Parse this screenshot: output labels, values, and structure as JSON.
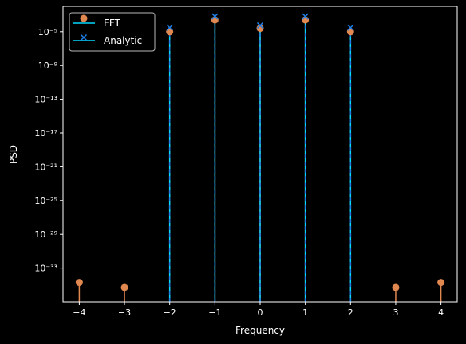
{
  "chart_data": {
    "type": "scatter",
    "xlabel": "Frequency",
    "ylabel": "PSD",
    "y_scale": "log",
    "xlim": [
      -4.36,
      4.36
    ],
    "ylim": [
      1e-37,
      0.01
    ],
    "x_ticks": [
      -4,
      -3,
      -2,
      -1,
      0,
      1,
      2,
      3,
      4
    ],
    "x_tick_labels": [
      "−4",
      "−3",
      "−2",
      "−1",
      "0",
      "1",
      "2",
      "3",
      "4"
    ],
    "y_tick_exponents": [
      -33,
      -29,
      -25,
      -21,
      -17,
      -13,
      -9,
      -5
    ],
    "y_tick_labels": [
      "10⁻³³",
      "10⁻²⁹",
      "10⁻²⁵",
      "10⁻²¹",
      "10⁻¹⁷",
      "10⁻¹³",
      "10⁻⁹",
      "10⁻⁵"
    ],
    "legend": {
      "position": "upper-left",
      "entries": [
        "FFT",
        "Analytic"
      ]
    },
    "grid": false,
    "background": "#000000",
    "series": [
      {
        "name": "FFT",
        "style": "stem",
        "marker": "circle",
        "color": "#e08850",
        "x": [
          -4,
          -3,
          -2,
          -1,
          0,
          1,
          2,
          3,
          4
        ],
        "y": [
          2e-35,
          5e-36,
          1e-05,
          0.00025,
          2.5e-05,
          0.00025,
          1e-05,
          5e-36,
          2e-35
        ]
      },
      {
        "name": "Analytic",
        "style": "stem",
        "marker": "x",
        "color": "#1f7fe8",
        "stem_color": "#00d8ff",
        "x": [
          -2,
          -1,
          0,
          1,
          2
        ],
        "y": [
          3e-05,
          0.00065,
          5.5e-05,
          0.00065,
          3e-05
        ]
      }
    ]
  }
}
